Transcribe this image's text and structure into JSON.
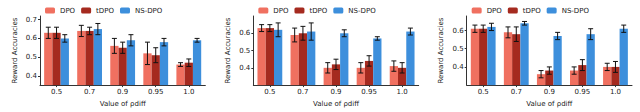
{
  "chart_data": [
    {
      "type": "bar",
      "x_label": "Value of ρdiff",
      "y_label": "Reward Accuracies",
      "categories": [
        "0.5",
        "0.7",
        "0.9",
        "0.95",
        "1.0"
      ],
      "ylim": [
        0.35,
        0.72
      ],
      "yticks": [
        0.4,
        0.5,
        0.6,
        0.7
      ],
      "grid": false,
      "legend": "upper left",
      "series": [
        {
          "name": "DPO",
          "color": "#f07060",
          "values": [
            0.63,
            0.64,
            0.56,
            0.52,
            0.46
          ],
          "errors": [
            0.03,
            0.03,
            0.04,
            0.06,
            0.01
          ]
        },
        {
          "name": "tDPO",
          "color": "#a52a1f",
          "values": [
            0.63,
            0.64,
            0.55,
            0.51,
            0.47
          ],
          "errors": [
            0.03,
            0.02,
            0.03,
            0.04,
            0.02
          ]
        },
        {
          "name": "NS-DPO",
          "color": "#3d8fdc",
          "values": [
            0.6,
            0.65,
            0.59,
            0.58,
            0.59
          ],
          "errors": [
            0.02,
            0.03,
            0.03,
            0.02,
            0.01
          ]
        }
      ]
    },
    {
      "type": "bar",
      "x_label": "Value of ρdiff",
      "y_label": "Reward Accuracies",
      "categories": [
        "0.5",
        "0.7",
        "0.9",
        "0.95",
        "1.0"
      ],
      "ylim": [
        0.3,
        0.7
      ],
      "yticks": [
        0.4,
        0.5,
        0.6
      ],
      "grid": false,
      "legend": "upper left",
      "series": [
        {
          "name": "DPO",
          "color": "#f07060",
          "values": [
            0.63,
            0.59,
            0.4,
            0.4,
            0.41
          ],
          "errors": [
            0.02,
            0.04,
            0.03,
            0.03,
            0.03
          ]
        },
        {
          "name": "tDPO",
          "color": "#a52a1f",
          "values": [
            0.63,
            0.6,
            0.42,
            0.44,
            0.4
          ],
          "errors": [
            0.02,
            0.04,
            0.03,
            0.03,
            0.03
          ]
        },
        {
          "name": "NS-DPO",
          "color": "#3d8fdc",
          "values": [
            0.62,
            0.61,
            0.6,
            0.57,
            0.61
          ],
          "errors": [
            0.04,
            0.05,
            0.02,
            0.01,
            0.02
          ]
        }
      ]
    },
    {
      "type": "bar",
      "x_label": "Value of ρdiff",
      "y_label": "Reward Accuracies",
      "categories": [
        "0.5",
        "0.7",
        "0.9",
        "0.95",
        "1.0"
      ],
      "ylim": [
        0.3,
        0.68
      ],
      "yticks": [
        0.4,
        0.5,
        0.6
      ],
      "grid": false,
      "legend": "upper left",
      "series": [
        {
          "name": "DPO",
          "color": "#f07060",
          "values": [
            0.61,
            0.59,
            0.36,
            0.38,
            0.4
          ],
          "errors": [
            0.02,
            0.03,
            0.02,
            0.02,
            0.02
          ]
        },
        {
          "name": "tDPO",
          "color": "#a52a1f",
          "values": [
            0.61,
            0.58,
            0.38,
            0.41,
            0.4
          ],
          "errors": [
            0.02,
            0.04,
            0.02,
            0.03,
            0.03
          ]
        },
        {
          "name": "NS-DPO",
          "color": "#3d8fdc",
          "values": [
            0.62,
            0.64,
            0.57,
            0.58,
            0.61
          ],
          "errors": [
            0.02,
            0.01,
            0.02,
            0.03,
            0.02
          ]
        }
      ]
    }
  ]
}
